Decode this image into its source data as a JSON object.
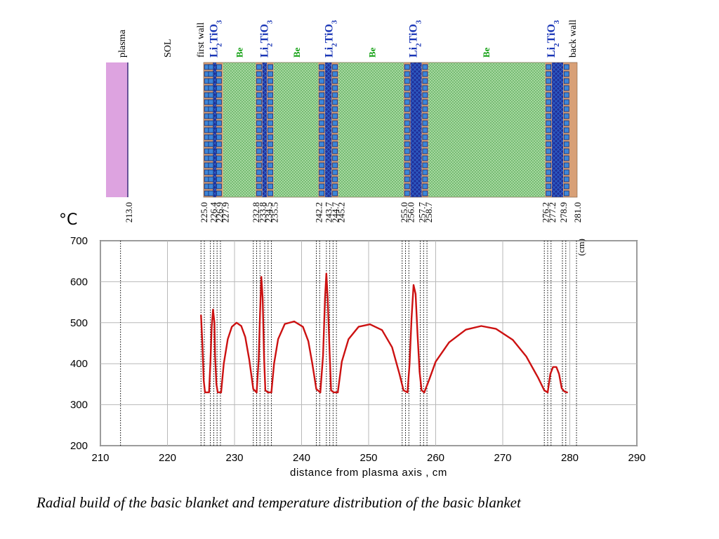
{
  "colors": {
    "plasma": "#dda3e0",
    "be": "#a6d8a0",
    "be_dots": "#3e9a3e",
    "breeder": "#1f2f9a",
    "breeder_stripe": "#2f62c8",
    "cooling_square": "#3d86d8",
    "cooling_stroke": "#112a70",
    "wall": "#d8a077",
    "curve": "#cc1111",
    "be_label": "#12a012",
    "li_label": "#1a36b6"
  },
  "build": {
    "region_labels": {
      "plasma": "plasma",
      "sol": "SOL",
      "first_wall": "first wall",
      "back_wall": "back wall",
      "breeder": "Li2TiO3",
      "be": "Be"
    },
    "breeder_positions": [
      226.4,
      234.0,
      243.7,
      256.3,
      277.0
    ],
    "be_positions": [
      230.3,
      238.9,
      250.2,
      267.3
    ],
    "boundaries": [
      "213.0",
      "225.0",
      "226.4",
      "226.9",
      "227.9",
      "232.8",
      "233.8",
      "234.5",
      "235.5",
      "242.2",
      "243.7",
      "244.7",
      "245.2",
      "255.0",
      "256.0",
      "257.7",
      "258.7",
      "276.2",
      "277.2",
      "278.9",
      "281.0"
    ],
    "unit": "(cm)"
  },
  "temperature_unit": "°C",
  "caption": "Radial build of the basic blanket and temperature distribution of the basic blanket",
  "chart_data": {
    "type": "line",
    "title": "",
    "xlabel": "distance from plasma axis , cm",
    "ylabel": "°C",
    "xlim": [
      210,
      290
    ],
    "ylim": [
      200,
      700
    ],
    "xticks": [
      210,
      220,
      230,
      240,
      250,
      260,
      270,
      280,
      290
    ],
    "yticks": [
      200,
      300,
      400,
      500,
      600,
      700
    ],
    "grid": true,
    "boundary_lines": [
      213.0,
      225.0,
      225.5,
      226.4,
      226.9,
      227.4,
      227.9,
      232.8,
      233.3,
      233.8,
      234.5,
      235.0,
      235.5,
      242.2,
      242.7,
      243.7,
      244.2,
      244.7,
      245.2,
      255.0,
      255.5,
      256.0,
      257.7,
      258.2,
      258.7,
      276.2,
      276.7,
      277.2,
      278.9,
      279.4,
      281.0
    ],
    "series": [
      {
        "color": "#cc1111",
        "segments": [
          [
            [
              225.0,
              518
            ],
            [
              225.2,
              450
            ],
            [
              225.4,
              360
            ],
            [
              225.6,
              330
            ],
            [
              226.2,
              330
            ],
            [
              226.4,
              400
            ],
            [
              226.6,
              490
            ],
            [
              226.8,
              532
            ],
            [
              227.0,
              500
            ],
            [
              227.1,
              420
            ],
            [
              227.3,
              350
            ],
            [
              227.5,
              330
            ],
            [
              228.0,
              330
            ]
          ],
          [
            [
              228.0,
              330
            ],
            [
              228.4,
              400
            ],
            [
              229.0,
              460
            ],
            [
              229.6,
              490
            ],
            [
              230.3,
              500
            ],
            [
              231.0,
              492
            ],
            [
              231.6,
              465
            ],
            [
              232.2,
              410
            ],
            [
              232.8,
              338
            ],
            [
              233.3,
              330
            ]
          ],
          [
            [
              233.3,
              330
            ],
            [
              233.6,
              410
            ],
            [
              233.8,
              520
            ],
            [
              234.0,
              612
            ],
            [
              234.2,
              560
            ],
            [
              234.4,
              420
            ],
            [
              234.6,
              335
            ],
            [
              235.0,
              330
            ],
            [
              235.5,
              330
            ]
          ],
          [
            [
              235.5,
              330
            ],
            [
              235.9,
              400
            ],
            [
              236.5,
              460
            ],
            [
              237.5,
              497
            ],
            [
              238.9,
              503
            ],
            [
              240.2,
              490
            ],
            [
              241.0,
              455
            ],
            [
              241.6,
              400
            ],
            [
              242.2,
              338
            ],
            [
              242.8,
              330
            ]
          ],
          [
            [
              242.8,
              330
            ],
            [
              243.2,
              420
            ],
            [
              243.5,
              560
            ],
            [
              243.7,
              620
            ],
            [
              243.9,
              560
            ],
            [
              244.2,
              420
            ],
            [
              244.4,
              335
            ],
            [
              244.8,
              330
            ],
            [
              245.4,
              330
            ]
          ],
          [
            [
              245.4,
              330
            ],
            [
              246.0,
              405
            ],
            [
              247.0,
              460
            ],
            [
              248.5,
              490
            ],
            [
              250.2,
              496
            ],
            [
              252.0,
              482
            ],
            [
              253.5,
              440
            ],
            [
              254.6,
              375
            ],
            [
              255.2,
              335
            ],
            [
              255.8,
              330
            ]
          ],
          [
            [
              255.8,
              330
            ],
            [
              256.1,
              400
            ],
            [
              256.4,
              510
            ],
            [
              256.7,
              592
            ],
            [
              257.0,
              570
            ],
            [
              257.3,
              470
            ],
            [
              257.6,
              380
            ],
            [
              257.9,
              335
            ],
            [
              258.3,
              330
            ]
          ],
          [
            [
              258.3,
              330
            ],
            [
              259.0,
              360
            ],
            [
              260.0,
              405
            ],
            [
              262.0,
              452
            ],
            [
              264.5,
              483
            ],
            [
              266.8,
              492
            ],
            [
              269.0,
              485
            ],
            [
              271.5,
              458
            ],
            [
              273.5,
              418
            ],
            [
              275.3,
              365
            ],
            [
              276.2,
              335
            ],
            [
              276.7,
              330
            ]
          ],
          [
            [
              276.7,
              330
            ],
            [
              277.1,
              375
            ],
            [
              277.5,
              392
            ],
            [
              278.0,
              392
            ],
            [
              278.4,
              375
            ],
            [
              278.8,
              340
            ],
            [
              279.2,
              332
            ],
            [
              279.6,
              330
            ]
          ]
        ]
      }
    ]
  }
}
